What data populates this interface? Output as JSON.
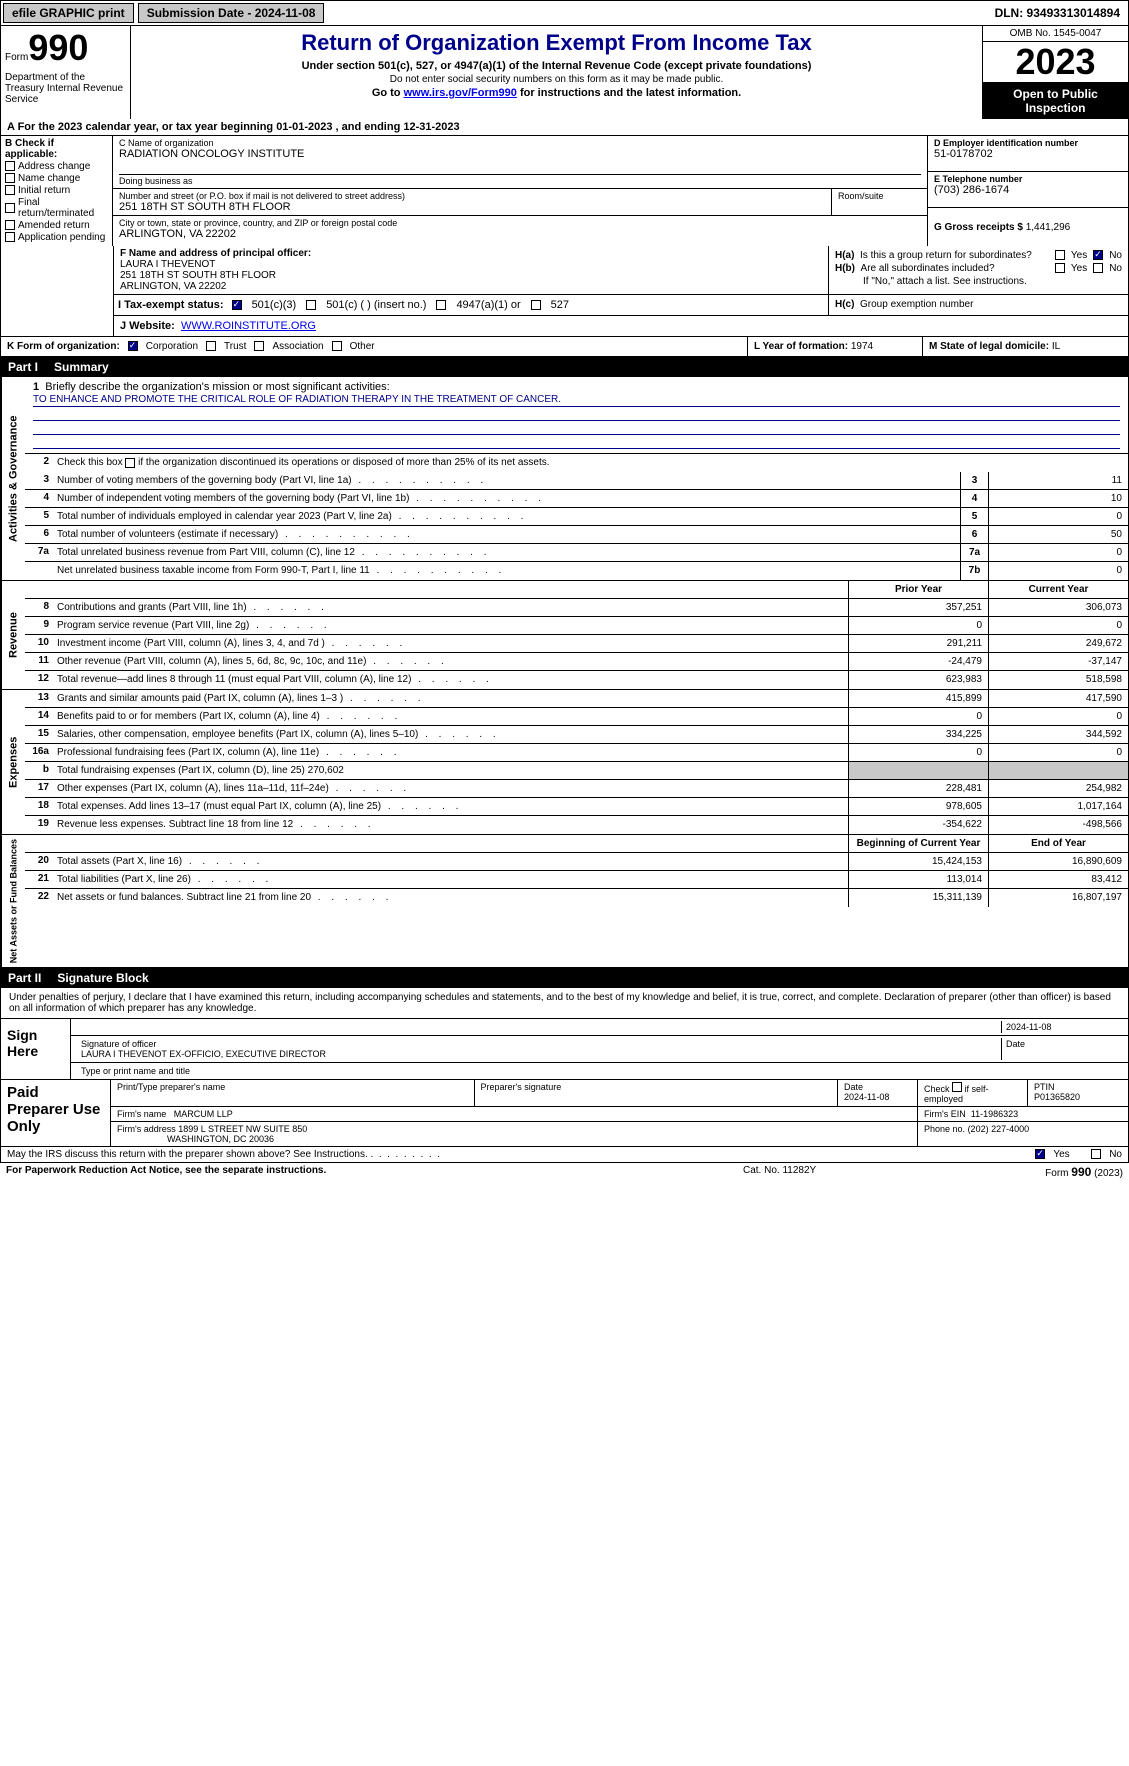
{
  "topbar": {
    "efile": "efile GRAPHIC print",
    "submission_label": "Submission Date - 2024-11-08",
    "dln": "DLN: 93493313014894"
  },
  "header": {
    "form_word": "Form",
    "form_num": "990",
    "dept": "Department of the Treasury Internal Revenue Service",
    "title": "Return of Organization Exempt From Income Tax",
    "subtitle": "Under section 501(c), 527, or 4947(a)(1) of the Internal Revenue Code (except private foundations)",
    "note_ssn": "Do not enter social security numbers on this form as it may be made public.",
    "goto_pre": "Go to ",
    "goto_url": "www.irs.gov/Form990",
    "goto_post": " for instructions and the latest information.",
    "omb": "OMB No. 1545-0047",
    "year": "2023",
    "open": "Open to Public Inspection"
  },
  "row_a": "A  For the 2023 calendar year, or tax year beginning 01-01-2023    , and ending 12-31-2023",
  "col_b": {
    "hdr": "B Check if applicable:",
    "opts": [
      "Address change",
      "Name change",
      "Initial return",
      "Final return/terminated",
      "Amended return",
      "Application pending"
    ]
  },
  "col_c": {
    "name_lbl": "C Name of organization",
    "name": "RADIATION ONCOLOGY INSTITUTE",
    "dba_lbl": "Doing business as",
    "street_lbl": "Number and street (or P.O. box if mail is not delivered to street address)",
    "street": "251 18TH ST SOUTH 8TH FLOOR",
    "room_lbl": "Room/suite",
    "city_lbl": "City or town, state or province, country, and ZIP or foreign postal code",
    "city": "ARLINGTON, VA  22202"
  },
  "col_d": {
    "ein_lbl": "D Employer identification number",
    "ein": "51-0178702",
    "tel_lbl": "E Telephone number",
    "tel": "(703) 286-1674",
    "gross_lbl": "G Gross receipts $ ",
    "gross": "1,441,296"
  },
  "col_f": {
    "lbl": "F  Name and address of principal officer:",
    "name": "LAURA I THEVENOT",
    "addr1": "251 18TH ST SOUTH 8TH FLOOR",
    "addr2": "ARLINGTON, VA  22202"
  },
  "col_h": {
    "a_lbl": "H(a)  Is this a group return for subordinates?",
    "b_lbl": "H(b)  Are all subordinates included?",
    "b_note": "If \"No,\" attach a list. See instructions.",
    "c_lbl": "H(c)  Group exemption number",
    "yes": "Yes",
    "no": "No"
  },
  "row_i": {
    "lbl": "I   Tax-exempt status:",
    "o1": "501(c)(3)",
    "o2": "501(c) (  ) (insert no.)",
    "o3": "4947(a)(1) or",
    "o4": "527"
  },
  "row_j": {
    "lbl": "J   Website:",
    "val": "WWW.ROINSTITUTE.ORG"
  },
  "row_k": {
    "k_lbl": "K Form of organization:",
    "k_opts": [
      "Corporation",
      "Trust",
      "Association",
      "Other"
    ],
    "l_lbl": "L Year of formation: ",
    "l_val": "1974",
    "m_lbl": "M State of legal domicile: ",
    "m_val": "IL"
  },
  "part1": {
    "hdr_num": "Part I",
    "hdr_txt": "Summary",
    "tab_ag": "Activities & Governance",
    "tab_rev": "Revenue",
    "tab_exp": "Expenses",
    "tab_net": "Net Assets or Fund Balances",
    "l1_lbl": "Briefly describe the organization's mission or most significant activities:",
    "l1_val": "TO ENHANCE AND PROMOTE THE CRITICAL ROLE OF RADIATION THERAPY IN THE TREATMENT OF CANCER.",
    "l2": "Check this box      if the organization discontinued its operations or disposed of more than 25% of its net assets.",
    "lines_ag": [
      {
        "n": "3",
        "d": "Number of voting members of the governing body (Part VI, line 1a)",
        "b": "3",
        "v": "11"
      },
      {
        "n": "4",
        "d": "Number of independent voting members of the governing body (Part VI, line 1b)",
        "b": "4",
        "v": "10"
      },
      {
        "n": "5",
        "d": "Total number of individuals employed in calendar year 2023 (Part V, line 2a)",
        "b": "5",
        "v": "0"
      },
      {
        "n": "6",
        "d": "Total number of volunteers (estimate if necessary)",
        "b": "6",
        "v": "50"
      },
      {
        "n": "7a",
        "d": "Total unrelated business revenue from Part VIII, column (C), line 12",
        "b": "7a",
        "v": "0"
      },
      {
        "n": "",
        "d": "Net unrelated business taxable income from Form 990-T, Part I, line 11",
        "b": "7b",
        "v": "0"
      }
    ],
    "hdr_prior": "Prior Year",
    "hdr_curr": "Current Year",
    "lines_rev": [
      {
        "n": "8",
        "d": "Contributions and grants (Part VIII, line 1h)",
        "p": "357,251",
        "c": "306,073"
      },
      {
        "n": "9",
        "d": "Program service revenue (Part VIII, line 2g)",
        "p": "0",
        "c": "0"
      },
      {
        "n": "10",
        "d": "Investment income (Part VIII, column (A), lines 3, 4, and 7d )",
        "p": "291,211",
        "c": "249,672"
      },
      {
        "n": "11",
        "d": "Other revenue (Part VIII, column (A), lines 5, 6d, 8c, 9c, 10c, and 11e)",
        "p": "-24,479",
        "c": "-37,147"
      },
      {
        "n": "12",
        "d": "Total revenue—add lines 8 through 11 (must equal Part VIII, column (A), line 12)",
        "p": "623,983",
        "c": "518,598"
      }
    ],
    "lines_exp": [
      {
        "n": "13",
        "d": "Grants and similar amounts paid (Part IX, column (A), lines 1–3 )",
        "p": "415,899",
        "c": "417,590"
      },
      {
        "n": "14",
        "d": "Benefits paid to or for members (Part IX, column (A), line 4)",
        "p": "0",
        "c": "0"
      },
      {
        "n": "15",
        "d": "Salaries, other compensation, employee benefits (Part IX, column (A), lines 5–10)",
        "p": "334,225",
        "c": "344,592"
      },
      {
        "n": "16a",
        "d": "Professional fundraising fees (Part IX, column (A), line 11e)",
        "p": "0",
        "c": "0"
      },
      {
        "n": "b",
        "d": "Total fundraising expenses (Part IX, column (D), line 25) 270,602",
        "shade": true
      },
      {
        "n": "17",
        "d": "Other expenses (Part IX, column (A), lines 11a–11d, 11f–24e)",
        "p": "228,481",
        "c": "254,982"
      },
      {
        "n": "18",
        "d": "Total expenses. Add lines 13–17 (must equal Part IX, column (A), line 25)",
        "p": "978,605",
        "c": "1,017,164"
      },
      {
        "n": "19",
        "d": "Revenue less expenses. Subtract line 18 from line 12",
        "p": "-354,622",
        "c": "-498,566"
      }
    ],
    "hdr_begin": "Beginning of Current Year",
    "hdr_end": "End of Year",
    "lines_net": [
      {
        "n": "20",
        "d": "Total assets (Part X, line 16)",
        "p": "15,424,153",
        "c": "16,890,609"
      },
      {
        "n": "21",
        "d": "Total liabilities (Part X, line 26)",
        "p": "113,014",
        "c": "83,412"
      },
      {
        "n": "22",
        "d": "Net assets or fund balances. Subtract line 21 from line 20",
        "p": "15,311,139",
        "c": "16,807,197"
      }
    ]
  },
  "part2": {
    "hdr_num": "Part II",
    "hdr_txt": "Signature Block",
    "intro": "Under penalties of perjury, I declare that I have examined this return, including accompanying schedules and statements, and to the best of my knowledge and belief, it is true, correct, and complete. Declaration of preparer (other than officer) is based on all information of which preparer has any knowledge.",
    "sign_here": "Sign Here",
    "sig_date": "2024-11-08",
    "sig_lbl": "Signature of officer",
    "sig_date_lbl": "Date",
    "officer": "LAURA I THEVENOT EX-OFFICIO, EXECUTIVE DIRECTOR",
    "type_lbl": "Type or print name and title",
    "paid": "Paid Preparer Use Only",
    "prep_name_lbl": "Print/Type preparer's name",
    "prep_sig_lbl": "Preparer's signature",
    "prep_date_lbl": "Date",
    "prep_date": "2024-11-08",
    "prep_check_lbl": "Check      if self-employed",
    "ptin_lbl": "PTIN",
    "ptin": "P01365820",
    "firm_name_lbl": "Firm's name",
    "firm_name": "MARCUM LLP",
    "firm_ein_lbl": "Firm's EIN",
    "firm_ein": "11-1986323",
    "firm_addr_lbl": "Firm's address",
    "firm_addr1": "1899 L STREET NW SUITE 850",
    "firm_addr2": "WASHINGTON, DC  20036",
    "firm_phone_lbl": "Phone no.",
    "firm_phone": "(202) 227-4000",
    "discuss": "May the IRS discuss this return with the preparer shown above? See Instructions.",
    "yes": "Yes",
    "no": "No"
  },
  "footer": {
    "paperwork": "For Paperwork Reduction Act Notice, see the separate instructions.",
    "cat": "Cat. No. 11282Y",
    "form": "Form 990 (2023)"
  }
}
